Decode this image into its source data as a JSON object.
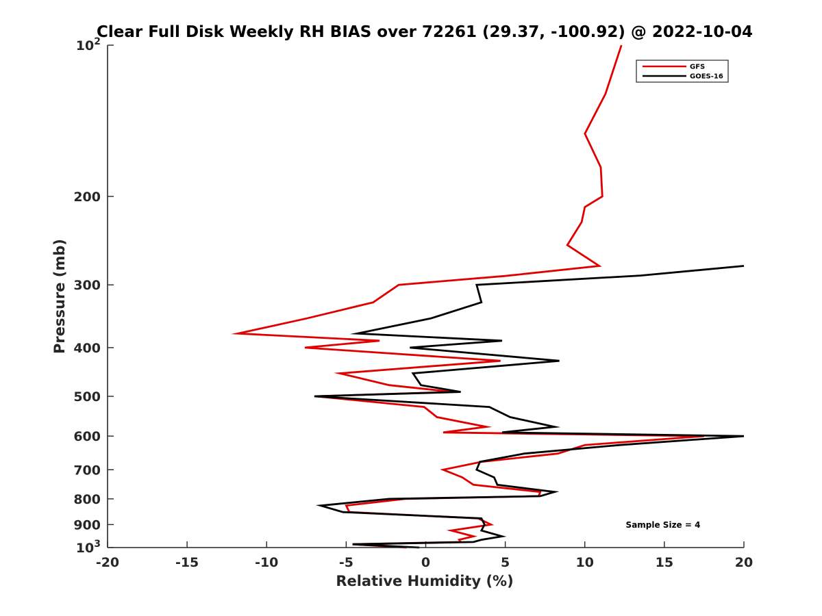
{
  "chart_data": {
    "type": "line",
    "title": "Clear Full Disk Weekly RH BIAS over 72261 (29.37, -100.92) @ 2022-10-04",
    "xlabel": "Relative Humidity (%)",
    "ylabel": "Pressure (mb)",
    "xlim": [
      -20,
      20
    ],
    "ylim": [
      100,
      1000
    ],
    "y_scale": "log",
    "y_reversed": true,
    "x_ticks": [
      -20,
      -15,
      -10,
      -5,
      0,
      5,
      10,
      15,
      20
    ],
    "x_tick_labels": [
      "-20",
      "-15",
      "-10",
      "-5",
      "0",
      "5",
      "10",
      "15",
      "20"
    ],
    "y_ticks": [
      200,
      300,
      400,
      500,
      600,
      700,
      800,
      900
    ],
    "y_tick_labels": [
      "200",
      "300",
      "400",
      "500",
      "600",
      "700",
      "800",
      "900"
    ],
    "y_ends": [
      {
        "value": 100,
        "base": "10",
        "exp": "2"
      },
      {
        "value": 1000,
        "base": "10",
        "exp": "3"
      }
    ],
    "grid": false,
    "legend_position": "top-right",
    "annotation": "Sample Size = 4",
    "series": [
      {
        "name": "GFS",
        "color": "#e00000",
        "points": [
          [
            12.3,
            100
          ],
          [
            11.3,
            125
          ],
          [
            10.0,
            150
          ],
          [
            11.0,
            175
          ],
          [
            11.1,
            200
          ],
          [
            10.0,
            210
          ],
          [
            9.8,
            225
          ],
          [
            8.9,
            250
          ],
          [
            10.9,
            275
          ],
          [
            5.0,
            288
          ],
          [
            -1.7,
            300
          ],
          [
            -3.3,
            325
          ],
          [
            -7.5,
            350
          ],
          [
            -11.8,
            375
          ],
          [
            -2.9,
            387.5
          ],
          [
            -7.6,
            400
          ],
          [
            4.7,
            425
          ],
          [
            -5.4,
            450
          ],
          [
            -2.3,
            475
          ],
          [
            1.7,
            490
          ],
          [
            -6.9,
            500
          ],
          [
            -0.1,
            525
          ],
          [
            0.7,
            550
          ],
          [
            3.8,
            575
          ],
          [
            1.1,
            590
          ],
          [
            17.5,
            600
          ],
          [
            10.0,
            625
          ],
          [
            8.3,
            650
          ],
          [
            3.5,
            675
          ],
          [
            1.1,
            700
          ],
          [
            2.3,
            725
          ],
          [
            3.0,
            750
          ],
          [
            7.2,
            775
          ],
          [
            7.1,
            790
          ],
          [
            -1.3,
            800
          ],
          [
            -5.0,
            825
          ],
          [
            -4.8,
            850
          ],
          [
            3.3,
            875
          ],
          [
            4.1,
            900
          ],
          [
            1.6,
            925
          ],
          [
            3.0,
            950
          ],
          [
            2.1,
            965
          ],
          [
            2.2,
            975
          ],
          [
            -4.6,
            985
          ],
          [
            -1.2,
            1000
          ]
        ]
      },
      {
        "name": "GOES-16",
        "color": "#000000",
        "points": [
          [
            20.0,
            275
          ],
          [
            13.5,
            287.5
          ],
          [
            3.2,
            300
          ],
          [
            3.5,
            325
          ],
          [
            0.3,
            350
          ],
          [
            -4.3,
            375
          ],
          [
            4.8,
            387.5
          ],
          [
            -1.0,
            400
          ],
          [
            8.4,
            425
          ],
          [
            -0.8,
            450
          ],
          [
            -0.3,
            475
          ],
          [
            2.2,
            490
          ],
          [
            -7.0,
            500
          ],
          [
            4.0,
            525
          ],
          [
            5.3,
            550
          ],
          [
            8.1,
            575
          ],
          [
            4.8,
            590
          ],
          [
            20.0,
            600
          ],
          [
            12.2,
            625
          ],
          [
            6.2,
            650
          ],
          [
            3.4,
            675
          ],
          [
            3.2,
            700
          ],
          [
            4.3,
            725
          ],
          [
            4.5,
            750
          ],
          [
            8.1,
            775
          ],
          [
            7.2,
            790
          ],
          [
            -2.3,
            800
          ],
          [
            -6.6,
            825
          ],
          [
            -5.2,
            850
          ],
          [
            3.5,
            875
          ],
          [
            3.7,
            900
          ],
          [
            3.5,
            925
          ],
          [
            4.8,
            950
          ],
          [
            3.5,
            965
          ],
          [
            3.0,
            975
          ],
          [
            -4.6,
            985
          ],
          [
            -0.4,
            1000
          ]
        ]
      }
    ]
  }
}
